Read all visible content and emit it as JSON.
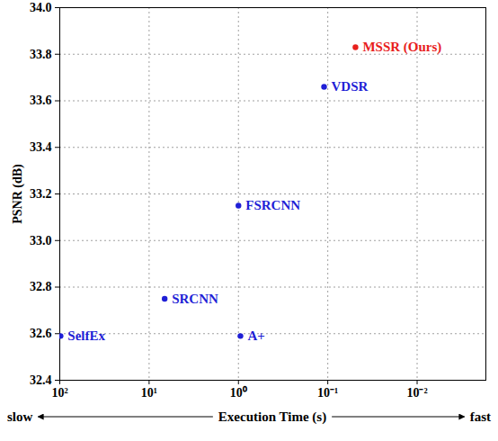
{
  "chart_data": {
    "type": "scatter",
    "x_label": "Execution Time (s)",
    "y_label": "PSNR (dB)",
    "annotations": [
      "slow",
      "fast"
    ],
    "labels": [
      "SelfEx",
      "SRCNN",
      "A+",
      "FSRCNN",
      "VDSR",
      "MSSR (Ours)"
    ],
    "x": [
      98,
      6.7,
      0.95,
      1.0,
      0.11,
      0.049
    ],
    "values": [
      32.59,
      32.75,
      32.59,
      33.15,
      33.66,
      33.83
    ],
    "colors": [
      "#1f1fd6",
      "#1f1fd6",
      "#1f1fd6",
      "#1f1fd6",
      "#1f1fd6",
      "#e8201c"
    ],
    "log": "x",
    "xlim": [
      100,
      0.0017
    ],
    "ylim": [
      32.4,
      34.0
    ],
    "xticks": [
      {
        "value": 100,
        "label": "10²"
      },
      {
        "value": 10,
        "label": "10¹"
      },
      {
        "value": 1,
        "label": "10⁰"
      },
      {
        "value": 0.1,
        "label": "10⁻¹"
      },
      {
        "value": 0.01,
        "label": "10⁻²"
      }
    ],
    "yticks": [
      32.4,
      32.6,
      32.8,
      {
        "value": 33,
        "label": "33.0"
      },
      33.2,
      33.4,
      33.6,
      33.8,
      {
        "value": 34,
        "label": "34.0"
      }
    ],
    "grid": true
  }
}
